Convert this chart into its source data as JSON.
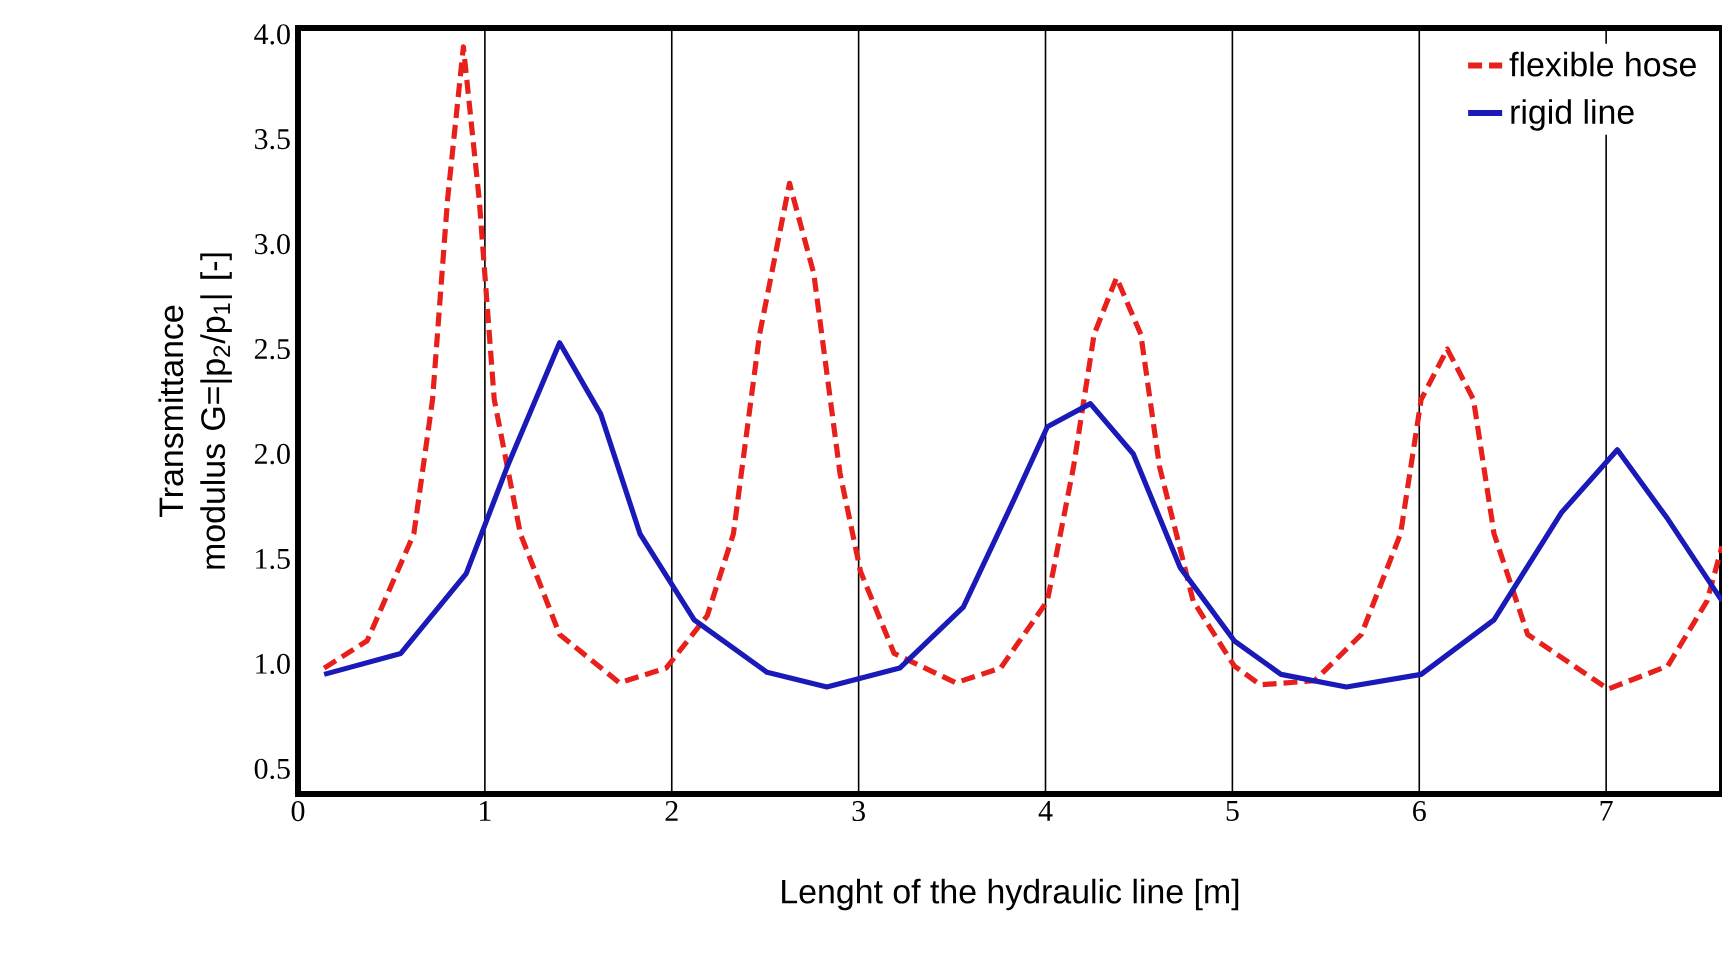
{
  "chart_data": {
    "type": "line",
    "xlabel": "Lenght of the hydraulic line [m]",
    "ylabel": "Transmittance modulus G=|p$_{2}$/p$_{1}$| [-]",
    "xlim": [
      0,
      7.62
    ],
    "ylim": [
      0.38,
      4.03
    ],
    "xticks": [
      0,
      1,
      2,
      3,
      4,
      5,
      6,
      7
    ],
    "yticks": [
      {
        "value": 0.5,
        "label": "0.5"
      },
      {
        "value": 1.0,
        "label": "1.0"
      },
      {
        "value": 1.5,
        "label": "1.5"
      },
      {
        "value": 2.0,
        "label": "2.0"
      },
      {
        "value": 2.5,
        "label": "2.5"
      },
      {
        "value": 3.0,
        "label": "3.0"
      },
      {
        "value": 3.5,
        "label": "3.5"
      },
      {
        "value": 4.0,
        "label": "4.0"
      }
    ],
    "grid": "x",
    "legend": "top right",
    "marker": "none",
    "series": [
      {
        "name": "flexible hose",
        "color": "#e8201c",
        "line_style": "dashed",
        "x": [
          0.14,
          0.37,
          0.62,
          0.72,
          0.8,
          0.885,
          0.97,
          1.05,
          1.19,
          1.4,
          1.72,
          1.97,
          2.19,
          2.33,
          2.47,
          2.63,
          2.76,
          2.9,
          3.01,
          3.19,
          3.52,
          3.76,
          4.01,
          4.15,
          4.26,
          4.38,
          4.51,
          4.61,
          4.79,
          5.01,
          5.15,
          5.44,
          5.69,
          5.9,
          6.01,
          6.15,
          6.29,
          6.4,
          6.58,
          7.01,
          7.33,
          7.54,
          7.62
        ],
        "values": [
          0.98,
          1.11,
          1.62,
          2.26,
          3.21,
          3.94,
          3.21,
          2.26,
          1.62,
          1.14,
          0.91,
          0.98,
          1.23,
          1.62,
          2.57,
          3.29,
          2.86,
          1.91,
          1.44,
          1.05,
          0.91,
          0.98,
          1.3,
          1.94,
          2.57,
          2.84,
          2.57,
          1.94,
          1.3,
          0.99,
          0.9,
          0.92,
          1.14,
          1.62,
          2.26,
          2.5,
          2.26,
          1.62,
          1.14,
          0.88,
          0.99,
          1.3,
          1.56
        ]
      },
      {
        "name": "rigid line",
        "color": "#1a1ab8",
        "line_style": "solid",
        "x": [
          0.14,
          0.55,
          0.9,
          1.12,
          1.4,
          1.62,
          1.83,
          2.12,
          2.51,
          2.83,
          3.22,
          3.56,
          3.83,
          4.01,
          4.24,
          4.47,
          4.72,
          5.01,
          5.26,
          5.61,
          6.01,
          6.4,
          6.76,
          7.06,
          7.33,
          7.62
        ],
        "values": [
          0.95,
          1.05,
          1.43,
          1.94,
          2.53,
          2.19,
          1.62,
          1.21,
          0.96,
          0.89,
          0.98,
          1.27,
          1.78,
          2.13,
          2.24,
          2.0,
          1.46,
          1.11,
          0.95,
          0.89,
          0.95,
          1.21,
          1.72,
          2.02,
          1.69,
          1.3
        ]
      }
    ]
  }
}
